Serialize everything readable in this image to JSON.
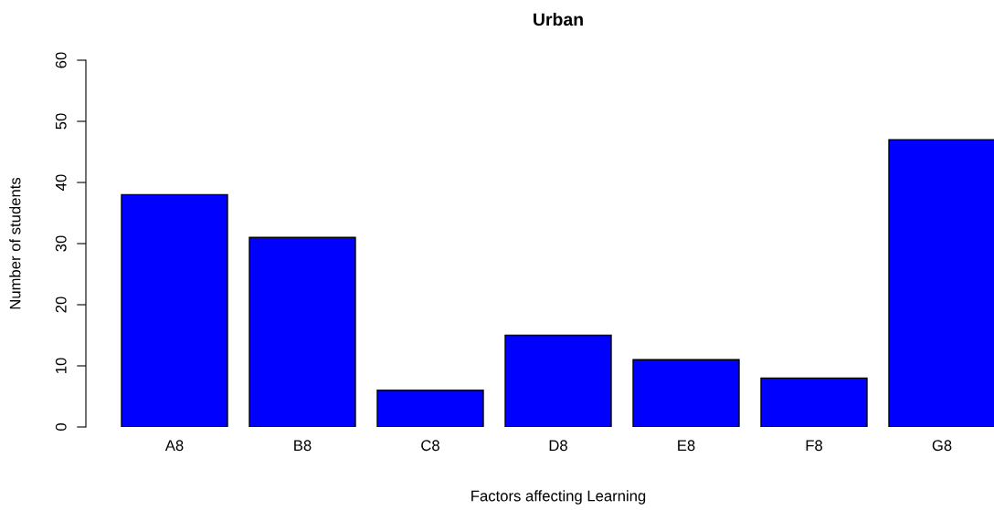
{
  "chart_data": {
    "type": "bar",
    "title": "Urban",
    "xlabel": "Factors affecting Learning",
    "ylabel": "Number of students",
    "categories": [
      "A8",
      "B8",
      "C8",
      "D8",
      "E8",
      "F8",
      "G8"
    ],
    "values": [
      38,
      31,
      6,
      15,
      11,
      8,
      47
    ],
    "color": "#0000ff",
    "ylim": [
      0,
      60
    ],
    "yticks": [
      0,
      10,
      20,
      30,
      40,
      50,
      60
    ],
    "grid": false,
    "legend": false
  }
}
